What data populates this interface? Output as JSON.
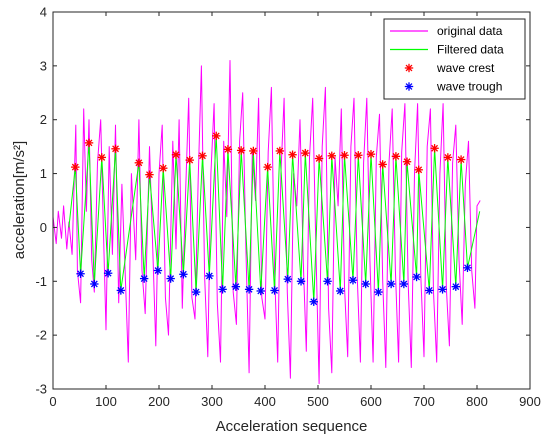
{
  "chart_data": {
    "type": "line",
    "xlabel": "Acceleration sequence",
    "ylabel": "acceleration[m/s²]",
    "xlim": [
      0,
      900
    ],
    "ylim": [
      -3,
      4
    ],
    "xticks": [
      "0",
      "100",
      "200",
      "300",
      "400",
      "500",
      "600",
      "700",
      "800",
      "900"
    ],
    "yticks": [
      "-3",
      "-2",
      "-1",
      "0",
      "1",
      "2",
      "3",
      "4"
    ],
    "grid": false,
    "legend_position": "top-right",
    "legend": [
      {
        "label": "original data",
        "style": "line",
        "color": "#ff00ff"
      },
      {
        "label": "Filtered data",
        "style": "line",
        "color": "#00ff00"
      },
      {
        "label": "wave crest",
        "style": "star",
        "color": "#ff0000"
      },
      {
        "label": "wave trough",
        "style": "star",
        "color": "#0000ff"
      }
    ],
    "series": [
      {
        "name": "wave crest",
        "color": "#ff0000",
        "x": [
          42,
          68,
          92,
          118,
          162,
          182,
          208,
          232,
          258,
          282,
          308,
          330,
          355,
          378,
          405,
          428,
          452,
          476,
          502,
          526,
          550,
          576,
          600,
          622,
          647,
          668,
          690,
          720,
          745,
          770
        ],
        "y": [
          1.12,
          1.57,
          1.3,
          1.46,
          1.2,
          0.98,
          1.1,
          1.35,
          1.25,
          1.33,
          1.7,
          1.45,
          1.43,
          1.42,
          1.12,
          1.42,
          1.35,
          1.38,
          1.28,
          1.33,
          1.34,
          1.34,
          1.36,
          1.17,
          1.32,
          1.22,
          1.07,
          1.47,
          1.3,
          1.26
        ]
      },
      {
        "name": "wave trough",
        "color": "#0000ff",
        "x": [
          52,
          78,
          104,
          128,
          172,
          198,
          222,
          246,
          270,
          295,
          320,
          345,
          370,
          392,
          418,
          443,
          468,
          492,
          518,
          542,
          566,
          590,
          614,
          638,
          662,
          686,
          710,
          735,
          760,
          782
        ],
        "y": [
          -0.86,
          -1.05,
          -0.85,
          -1.17,
          -0.95,
          -0.8,
          -0.95,
          -0.87,
          -1.2,
          -0.9,
          -1.15,
          -1.1,
          -1.15,
          -1.18,
          -1.17,
          -0.96,
          -1.0,
          -1.38,
          -1.0,
          -1.18,
          -0.98,
          -1.05,
          -1.2,
          -1.05,
          -1.05,
          -0.92,
          -1.17,
          -1.15,
          -1.1,
          -0.75
        ]
      },
      {
        "name": "Filtered data",
        "color": "#00ff00",
        "derived_from": [
          "wave crest",
          "wave trough"
        ],
        "start": [
          30,
          0.0
        ],
        "end": [
          805,
          0.3
        ]
      },
      {
        "name": "original data",
        "color": "#ff00ff",
        "x": [
          0,
          6,
          10,
          16,
          20,
          26,
          30,
          36,
          43,
          46,
          52,
          58,
          63,
          68,
          73,
          78,
          84,
          90,
          96,
          100,
          106,
          112,
          118,
          124,
          130,
          136,
          142,
          148,
          156,
          162,
          168,
          174,
          182,
          188,
          194,
          200,
          206,
          212,
          218,
          226,
          232,
          238,
          244,
          250,
          256,
          262,
          268,
          274,
          280,
          286,
          292,
          298,
          304,
          310,
          316,
          322,
          328,
          334,
          340,
          346,
          352,
          358,
          364,
          370,
          376,
          382,
          388,
          394,
          400,
          406,
          412,
          418,
          424,
          430,
          436,
          442,
          448,
          454,
          460,
          466,
          472,
          478,
          484,
          490,
          496,
          502,
          508,
          514,
          520,
          526,
          532,
          538,
          544,
          550,
          556,
          562,
          568,
          574,
          580,
          586,
          592,
          598,
          604,
          610,
          616,
          622,
          628,
          634,
          640,
          646,
          652,
          658,
          664,
          670,
          676,
          682,
          688,
          694,
          700,
          706,
          712,
          718,
          724,
          730,
          736,
          742,
          748,
          754,
          760,
          766,
          772,
          778,
          784,
          790,
          796,
          800,
          806
        ],
        "y": [
          0.2,
          -0.3,
          0.3,
          -0.2,
          0.4,
          -0.4,
          0.1,
          -0.5,
          1.9,
          -0.8,
          -1.4,
          2.2,
          0.3,
          2.0,
          -0.6,
          -1.2,
          1.2,
          2.0,
          -0.4,
          -1.9,
          1.5,
          -0.5,
          1.9,
          -1.4,
          0.8,
          -0.8,
          -2.5,
          1.0,
          -0.6,
          2.0,
          -0.8,
          -1.6,
          1.5,
          -0.3,
          -2.2,
          1.0,
          1.9,
          -1.3,
          -2.0,
          1.6,
          -0.4,
          2.0,
          -1.5,
          0.6,
          2.4,
          -1.3,
          -1.7,
          0.9,
          3.0,
          -0.9,
          -2.4,
          1.0,
          2.3,
          -1.4,
          -2.5,
          1.6,
          0.2,
          3.1,
          -1.2,
          -1.8,
          1.6,
          2.5,
          -0.4,
          -2.7,
          1.4,
          0.5,
          2.4,
          -1.3,
          -1.7,
          1.4,
          2.6,
          -0.8,
          -2.5,
          1.0,
          2.4,
          -1.2,
          -2.8,
          1.0,
          0.4,
          2.0,
          -0.6,
          -2.3,
          1.3,
          2.4,
          -0.4,
          -2.9,
          1.5,
          2.6,
          -1.5,
          -2.7,
          1.3,
          0.4,
          2.2,
          -1.1,
          -2.4,
          1.5,
          2.4,
          -0.9,
          -2.5,
          1.2,
          2.4,
          -0.6,
          -2.5,
          1.3,
          2.1,
          -1.0,
          -2.6,
          1.2,
          2.2,
          -0.8,
          -2.5,
          1.4,
          2.3,
          -1.0,
          -2.6,
          1.0,
          2.3,
          -0.9,
          -2.4,
          1.5,
          2.2,
          -1.2,
          -2.5,
          1.0,
          2.3,
          -1.1,
          -2.2,
          1.2,
          1.9,
          -0.6,
          -1.8,
          0.8,
          1.6,
          -0.8,
          -1.5,
          0.4,
          0.5
        ]
      }
    ]
  }
}
